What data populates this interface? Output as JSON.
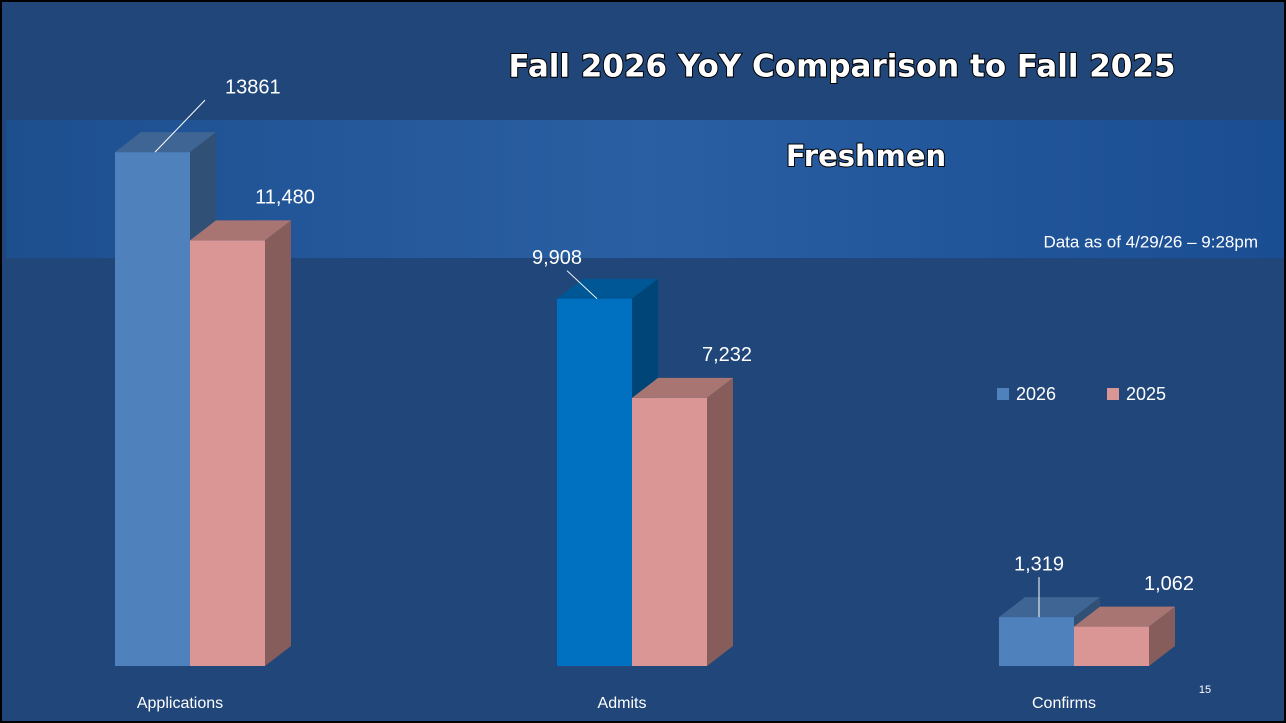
{
  "chart_data": {
    "type": "bar3d",
    "title": "Fall 2026 YoY Comparison to Fall 2025",
    "subtitle": "Freshmen",
    "annotation": "Data as of 4/29/26 – 9:28pm",
    "page_number": "15",
    "categories": [
      "Applications",
      "Admits",
      "Confirms"
    ],
    "series": [
      {
        "name": "2026",
        "color": "#4f81bd",
        "colors": [
          "#4f81bd",
          "#0070c0",
          "#4f81bd"
        ],
        "values": [
          13861,
          9908,
          1319
        ],
        "value_labels": [
          "13861",
          "9,908",
          "1,319"
        ]
      },
      {
        "name": "2025",
        "color": "#d99694",
        "values": [
          11480,
          7232,
          1062
        ],
        "value_labels": [
          "11,480",
          "7,232",
          "1,062"
        ]
      }
    ],
    "ylim": [
      0,
      14000
    ],
    "legend": "right"
  }
}
